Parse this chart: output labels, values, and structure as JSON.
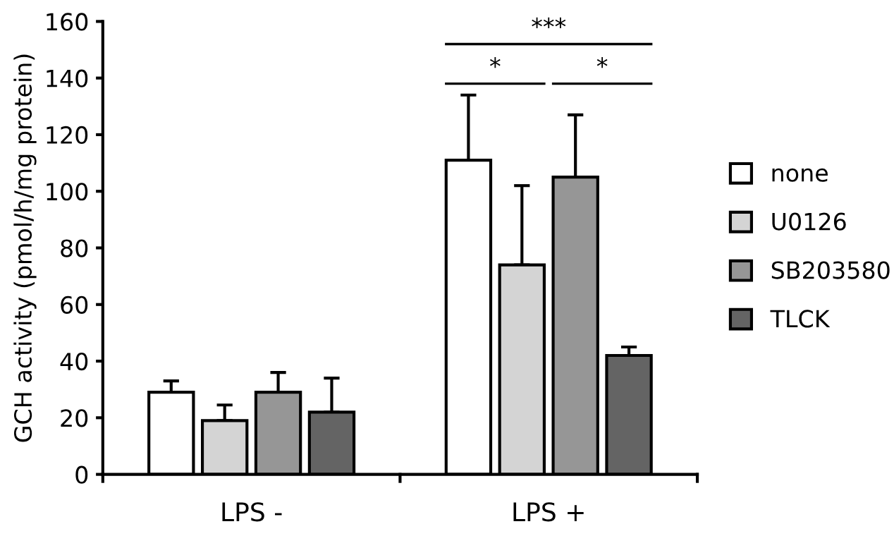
{
  "chart_data": {
    "type": "bar",
    "ylabel": "GCH activity (pmol/h/mg protein)",
    "categories": [
      "LPS -",
      "LPS +"
    ],
    "series": [
      {
        "name": "none",
        "color": "#ffffff",
        "values": [
          29,
          111
        ],
        "errors": [
          [
            29,
            33
          ],
          [
            111,
            134
          ]
        ]
      },
      {
        "name": "U0126",
        "color": "#d4d4d4",
        "values": [
          19,
          74
        ],
        "errors": [
          [
            19,
            24.5
          ],
          [
            74,
            102
          ]
        ]
      },
      {
        "name": "SB203580",
        "color": "#969696",
        "values": [
          29,
          105
        ],
        "errors": [
          [
            29,
            36
          ],
          [
            105,
            127
          ]
        ]
      },
      {
        "name": "TLCK",
        "color": "#646464",
        "values": [
          22,
          42
        ],
        "errors": [
          [
            22,
            34
          ],
          [
            42,
            45
          ]
        ]
      }
    ],
    "ylim": [
      0,
      160
    ],
    "yticks": [
      0,
      20,
      40,
      60,
      80,
      100,
      120,
      140,
      160
    ],
    "annotations": [
      "*",
      "*",
      "***"
    ],
    "legend": "right",
    "grid": false
  }
}
